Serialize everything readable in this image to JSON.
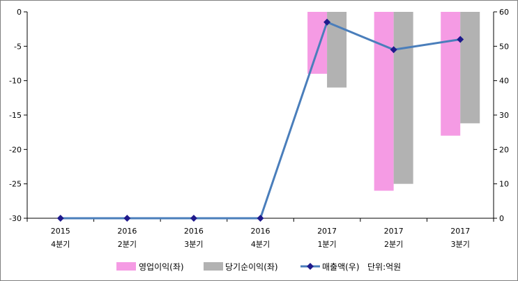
{
  "chart_data": {
    "type": "bar+line",
    "categories": [
      [
        "2015",
        "4분기"
      ],
      [
        "2016",
        "2분기"
      ],
      [
        "2016",
        "3분기"
      ],
      [
        "2016",
        "4분기"
      ],
      [
        "2017",
        "1분기"
      ],
      [
        "2017",
        "2분기"
      ],
      [
        "2017",
        "3분기"
      ]
    ],
    "left_axis": {
      "min": -30,
      "max": 0,
      "step": 5,
      "ticks": [
        "0",
        "-5",
        "-10",
        "-15",
        "-20",
        "-25",
        "-30"
      ]
    },
    "right_axis": {
      "min": 0,
      "max": 60,
      "step": 10,
      "ticks": [
        "60",
        "50",
        "40",
        "30",
        "20",
        "10",
        "0"
      ]
    },
    "series": [
      {
        "name": "영업이익(좌)",
        "type": "bar",
        "axis": "left",
        "color": "#f59be4",
        "values": [
          null,
          null,
          null,
          null,
          -9,
          -26,
          -18
        ]
      },
      {
        "name": "당기순이익(좌)",
        "type": "bar",
        "axis": "left",
        "color": "#b2b2b2",
        "values": [
          null,
          null,
          null,
          null,
          -11,
          -25,
          -16.2
        ]
      },
      {
        "name": "매출액(우)",
        "type": "line",
        "axis": "right",
        "color": "#4a7ebb",
        "marker_color": "#1f1a8c",
        "values": [
          0,
          0,
          0,
          0,
          57,
          49,
          52
        ]
      }
    ],
    "unit_note": "단위:억원",
    "grid": false,
    "legend_position": "bottom"
  }
}
